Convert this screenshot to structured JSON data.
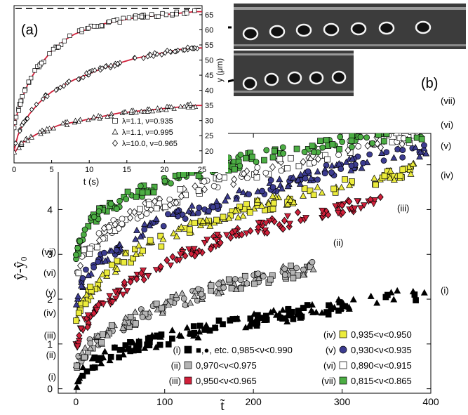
{
  "figure": {
    "panel_a_label": "(a)",
    "panel_b_label": "(b)"
  },
  "chart_data": [
    {
      "type": "scatter",
      "panel": "(a)",
      "xlabel": "t (s)",
      "ylabel": "y (μm)",
      "xlim": [
        0,
        25
      ],
      "ylim": [
        16,
        68
      ],
      "xticks": [
        0,
        5,
        10,
        15,
        20,
        25
      ],
      "yticks": [
        20,
        25,
        30,
        35,
        40,
        45,
        50,
        55,
        60,
        65
      ],
      "fit_line_color": "#d0203a",
      "reference_dashed_y": 67,
      "legend_position": "bottom-right",
      "series": [
        {
          "name": "λ=1.1,   ν=0.935",
          "marker": "square-open",
          "x": [
            0,
            0.5,
            1,
            1.5,
            2,
            3,
            4,
            5,
            6,
            7,
            8,
            9,
            10,
            12,
            14,
            16,
            18,
            20,
            22,
            24
          ],
          "y": [
            28,
            33,
            37,
            40,
            43,
            47,
            50,
            53,
            55,
            57,
            58.5,
            59.5,
            60.5,
            62,
            63,
            64,
            64.5,
            65,
            65.5,
            66
          ]
        },
        {
          "name": "λ=1.1,   ν=0.995",
          "marker": "triangle-open",
          "x": [
            0,
            0.5,
            1,
            2,
            3,
            4,
            5,
            6,
            8,
            10,
            12,
            14,
            16,
            18,
            20,
            22,
            24
          ],
          "y": [
            19,
            21,
            22.5,
            24,
            25.5,
            26.5,
            27.5,
            28.5,
            29.5,
            30.5,
            31.5,
            32.5,
            33,
            33.5,
            34,
            34.5,
            35
          ]
        },
        {
          "name": "λ=10.0,  ν=0.965",
          "marker": "diamond-open",
          "x": [
            0,
            0.5,
            1,
            2,
            3,
            4,
            5,
            6,
            8,
            10,
            12,
            14,
            16,
            18,
            20,
            22,
            24
          ],
          "y": [
            20,
            25,
            28,
            32,
            35,
            37.5,
            39.5,
            41,
            43.5,
            45.5,
            47.5,
            49,
            50.5,
            51.5,
            52.5,
            53.5,
            54
          ]
        }
      ]
    },
    {
      "type": "scatter",
      "panel": "main",
      "xlabel": "t̃",
      "ylabel": "ŷ-ŷ₀",
      "xlim": [
        -20,
        400
      ],
      "ylim": [
        -0.1,
        5.7
      ],
      "xticks": [
        0,
        100,
        200,
        300,
        400
      ],
      "yticks": [
        0,
        1,
        2,
        3,
        4,
        5
      ],
      "legend_position": "bottom-right",
      "series": [
        {
          "name": "(i)",
          "legend": "■,●, etc.  0,985<ν<0.990",
          "range": "0,985<ν<0.990",
          "color": "#000000",
          "x": [
            0,
            10,
            25,
            50,
            75,
            100,
            130,
            160,
            200,
            240,
            270,
            300,
            360,
            395
          ],
          "y": [
            0.05,
            0.4,
            0.65,
            0.85,
            1.0,
            1.12,
            1.25,
            1.38,
            1.52,
            1.65,
            1.75,
            1.85,
            2.05,
            2.15
          ]
        },
        {
          "name": "(ii)",
          "legend": "0,970<ν<0.975",
          "range": "0,970<ν<0.975",
          "color": "#b4b4b4",
          "x": [
            0,
            15,
            40,
            80,
            120,
            160,
            200,
            240,
            270
          ],
          "y": [
            0.55,
            0.95,
            1.3,
            1.7,
            2.0,
            2.25,
            2.45,
            2.6,
            2.7
          ]
        },
        {
          "name": "(iii)",
          "legend": "0,950<ν<0.965",
          "range": "0,950<ν<0.965",
          "color": "#d0203a",
          "x": [
            0,
            10,
            30,
            60,
            100,
            150,
            200,
            250,
            300,
            345
          ],
          "y": [
            1.0,
            1.45,
            1.9,
            2.35,
            2.8,
            3.25,
            3.55,
            3.8,
            4.05,
            4.2
          ]
        },
        {
          "name": "(iv)",
          "legend": "0,935<ν<0.950",
          "range": "0,935<ν<0.950",
          "color": "#ecec3c",
          "x": [
            0,
            10,
            30,
            60,
            100,
            150,
            200,
            250,
            300,
            350,
            395
          ],
          "y": [
            1.5,
            2.0,
            2.5,
            2.95,
            3.35,
            3.75,
            4.05,
            4.3,
            4.55,
            4.75,
            4.95
          ]
        },
        {
          "name": "(v)",
          "legend": "0,930<ν<0.935",
          "range": "0,930<ν<0.935",
          "color": "#3c3c90",
          "x": [
            0,
            10,
            30,
            60,
            100,
            150,
            200,
            250,
            300,
            350,
            395
          ],
          "y": [
            2.0,
            2.5,
            2.95,
            3.35,
            3.75,
            4.1,
            4.4,
            4.7,
            4.95,
            5.2,
            5.35
          ]
        },
        {
          "name": "(vi)",
          "legend": "0,890<ν<0.915",
          "range": "0,890<ν<0.915",
          "color": "#ffffff",
          "x": [
            0,
            10,
            30,
            60,
            100,
            150,
            200,
            250,
            300,
            350,
            395
          ],
          "y": [
            2.5,
            3.0,
            3.45,
            3.85,
            4.2,
            4.55,
            4.85,
            5.1,
            5.35,
            5.55,
            5.65
          ]
        },
        {
          "name": "(vii)",
          "legend": "0,815<ν<0.865",
          "range": "0,815<ν<0.865",
          "color": "#4cae44",
          "x": [
            0,
            10,
            25,
            60,
            100,
            150,
            200,
            250,
            300,
            350,
            395
          ],
          "y": [
            3.0,
            3.55,
            3.9,
            4.3,
            4.6,
            4.9,
            5.15,
            5.35,
            5.5,
            5.65,
            5.7
          ]
        }
      ]
    }
  ]
}
